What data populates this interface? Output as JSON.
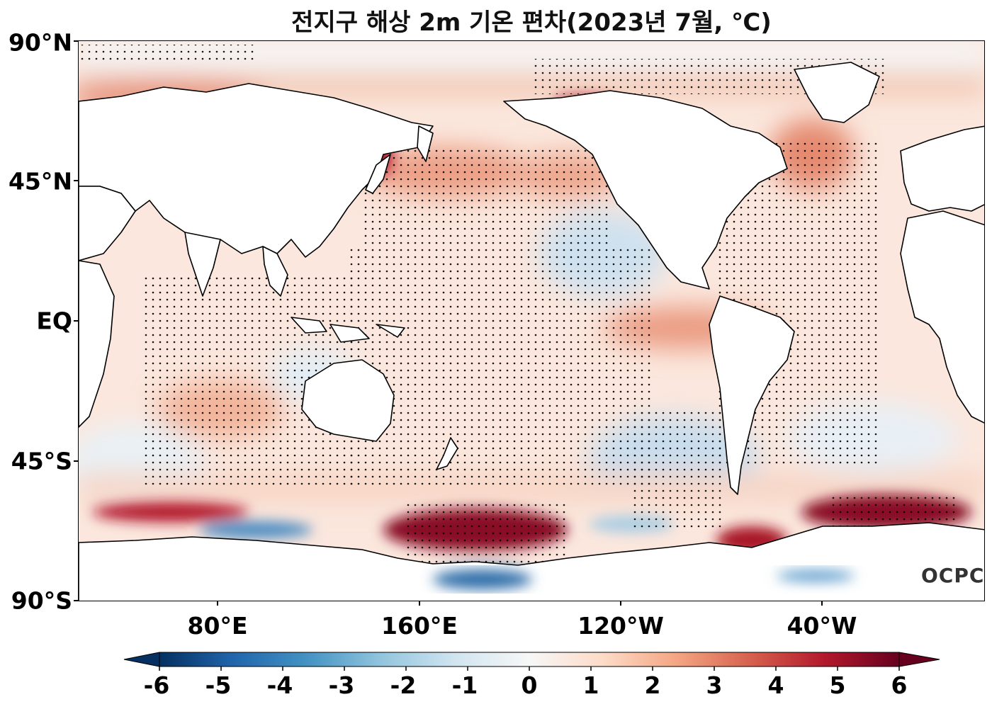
{
  "title": "전지구 해상 2m 기온 편차(2023년 7월, ℃)",
  "y_ticks": [
    "90°N",
    "45°N",
    "EQ",
    "45°S",
    "90°S"
  ],
  "x_ticks": [
    "80°E",
    "160°E",
    "120°W",
    "40°W"
  ],
  "colorbar": {
    "ticks": [
      "-6",
      "-5",
      "-4",
      "-3",
      "-2",
      "-1",
      "0",
      "1",
      "2",
      "3",
      "4",
      "5",
      "6"
    ],
    "min": -6,
    "max": 6,
    "extend": "both",
    "colormap": [
      "#053061",
      "#2166ac",
      "#4393c3",
      "#92c5de",
      "#d1e5f0",
      "#f7f7f7",
      "#fddbc7",
      "#f4a582",
      "#d6604d",
      "#b2182b",
      "#67001f"
    ]
  },
  "logo": "OCPC",
  "colors": {
    "land": "#ffffff",
    "coast": "#000000",
    "stipple": "#000000"
  }
}
